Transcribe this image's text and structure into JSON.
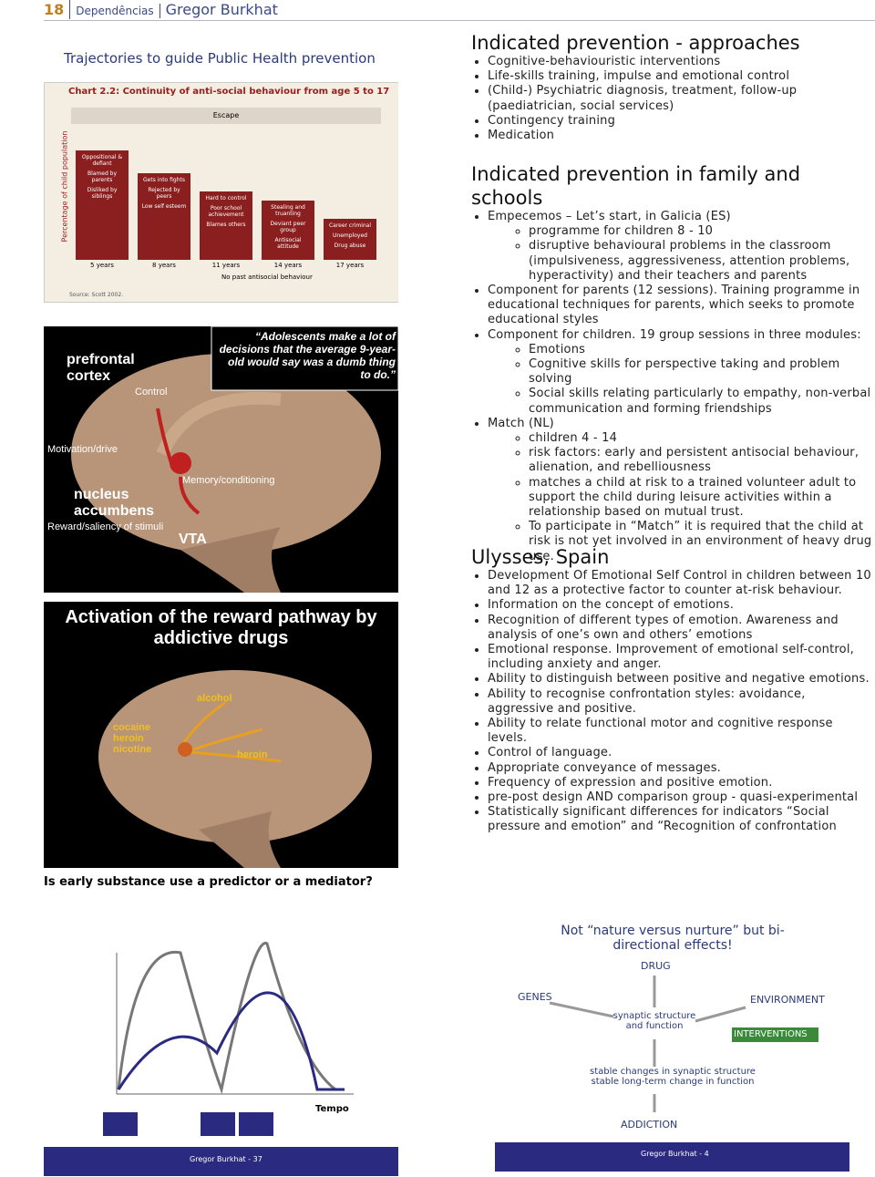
{
  "header": {
    "page": "18",
    "section": "Dependências",
    "author": "Gregor Burkhat"
  },
  "slide1": {
    "title": "Trajectories to guide Public Health prevention",
    "chart_title": "Chart 2.2: Continuity of anti-social behaviour from age 5 to 17",
    "escape": "Escape",
    "y_label": "Percentage of child population",
    "boxes": [
      [
        "Oppositional & defiant",
        "Blamed by parents",
        "Disliked by siblings"
      ],
      [
        "Gets into fights",
        "Rejected by peers",
        "Low self esteem"
      ],
      [
        "Hard to control",
        "Poor school achievement",
        "Blames others"
      ],
      [
        "Stealing and truanting",
        "Deviant peer group",
        "Antisocial attitude"
      ],
      [
        "Career criminal",
        "Unemployed",
        "Drug abuse"
      ]
    ],
    "ages": [
      "5 years",
      "8 years",
      "11 years",
      "14 years",
      "17 years"
    ],
    "footer": "No past antisocial behaviour",
    "source": "Source: Scott 2002."
  },
  "slide2": {
    "quote": "“Adolescents make a lot of decisions that the average 9-year-old would say was a dumb thing to do.”",
    "labels": {
      "pfc": "prefrontal cortex",
      "control": "Control",
      "motivation": "Motivation/drive",
      "memory": "Memory/conditioning",
      "nacc": "nucleus accumbens",
      "reward": "Reward/saliency of stimuli",
      "vta": "VTA"
    }
  },
  "slide3": {
    "title": "Activation of the reward pathway by addictive drugs",
    "labels": {
      "alcohol": "alcohol",
      "drugs": "cocaine heroin nicotine",
      "heroin": "heroin"
    }
  },
  "caption": "Is early substance use a predictor or a mediator?",
  "slide4": {
    "axis": "Tempo",
    "footer": "Gregor Burkhat - 37"
  },
  "slide5": {
    "title": "Not “nature versus nurture” but bi-directional effects!",
    "drug": "DRUG",
    "genes": "GENES",
    "environment": "ENVIRONMENT",
    "synaptic": "synaptic structure and function",
    "interventions": "INTERVENTIONS",
    "stable": "stable changes in synaptic structure stable long-term change in function",
    "addiction": "ADDICTION",
    "footer": "Gregor Burkhat - 4"
  },
  "sections": [
    {
      "heading": "Indicated prevention - approaches",
      "items": [
        {
          "text": "Cognitive-behaviouristic interventions"
        },
        {
          "text": "Life-skills training, impulse and emotional control"
        },
        {
          "text": "(Child-) Psychiatric diagnosis, treatment, follow-up (paediatrician, social services)"
        },
        {
          "text": "Contingency training"
        },
        {
          "text": "Medication"
        }
      ]
    },
    {
      "heading": "Indicated prevention in family and schools",
      "items": [
        {
          "text": "Empecemos – Let’s start, in Galicia (ES)",
          "items": [
            {
              "text": "programme for children 8 - 10"
            },
            {
              "text": "disruptive behavioural problems in the classroom (impulsiveness, aggressiveness, attention problems, hyperactivity) and their teachers and parents"
            }
          ]
        },
        {
          "text": "Component for parents (12 sessions). Training programme in educational techniques for parents, which seeks to promote educational styles"
        },
        {
          "text": "Component for children. 19 group sessions in three modules:",
          "items": [
            {
              "text": "Emotions"
            },
            {
              "text": "Cognitive skills for perspective taking and problem solving"
            },
            {
              "text": "Social skills relating particularly to empathy, non-verbal communication and forming friendships"
            }
          ]
        },
        {
          "text": "Match (NL)",
          "items": [
            {
              "text": "children 4 - 14"
            },
            {
              "text": "risk factors: early and persistent antisocial behaviour, alienation, and rebelliousness"
            },
            {
              "text": "matches a child at risk to a trained volunteer adult to support the child during leisure activities within a relationship based on mutual trust."
            },
            {
              "text": "To participate in “Match” it is required that the child at risk is not yet involved in an environment of heavy drug use."
            }
          ]
        }
      ]
    },
    {
      "heading": "Ulysses, Spain",
      "items": [
        {
          "text": "Development Of Emotional Self Control in children between 10 and 12 as a protective factor to counter at-risk behaviour."
        },
        {
          "text": "Information on the concept of emotions."
        },
        {
          "text": "Recognition of different types of emotion. Awareness and analysis of one’s own and others’ emotions"
        },
        {
          "text": "Emotional response. Improvement of emotional self-control, including anxiety and anger."
        },
        {
          "text": "Ability to distinguish between positive and negative emotions."
        },
        {
          "text": "Ability to recognise confrontation styles: avoidance, aggressive and positive."
        },
        {
          "text": "Ability to relate functional motor and cognitive response levels."
        },
        {
          "text": "Control of language."
        },
        {
          "text": "Appropriate conveyance of messages."
        },
        {
          "text": "Frequency of expression and positive emotion."
        },
        {
          "text": "pre-post design AND comparison group - quasi-experimental"
        },
        {
          "text": "Statistically significant differences for indicators “Social pressure and emotion” and “Recognition of confrontation"
        }
      ]
    }
  ]
}
